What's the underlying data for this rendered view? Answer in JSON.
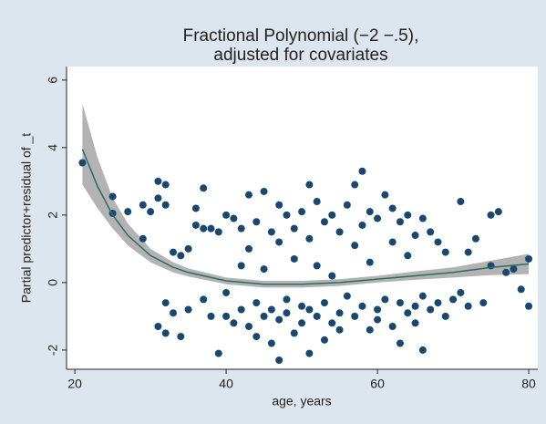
{
  "chart_data": {
    "type": "scatter-fit",
    "title": [
      "Fractional Polynomial (−2 −.5),",
      "adjusted for covariates"
    ],
    "x_label": "age, years",
    "y_label": "Partial predictor+residual of _t",
    "xlim": [
      18.9,
      81.2
    ],
    "ylim": [
      -2.57,
      6.4
    ],
    "xticks": [
      20,
      40,
      60,
      80
    ],
    "yticks": [
      -2,
      0,
      2,
      4,
      6
    ],
    "points": {
      "color": "#1a476f",
      "x": [
        21,
        25,
        25,
        27,
        29,
        29,
        30,
        31,
        31,
        32,
        32,
        31,
        32,
        32,
        33,
        33,
        34,
        34,
        35,
        35,
        36,
        36,
        37,
        37,
        37,
        38,
        38,
        39,
        39,
        40,
        40,
        40,
        41,
        41,
        42,
        42,
        42,
        43,
        43,
        43,
        44,
        44,
        44,
        45,
        45,
        45,
        46,
        46,
        46,
        47,
        47,
        47,
        47,
        48,
        48,
        48,
        49,
        49,
        49,
        50,
        50,
        50,
        51,
        51,
        51,
        51,
        52,
        52,
        52,
        53,
        53,
        53,
        54,
        54,
        54,
        55,
        55,
        55,
        56,
        56,
        57,
        57,
        57,
        58,
        58,
        58,
        59,
        59,
        59,
        60,
        60,
        60,
        61,
        61,
        62,
        62,
        62,
        63,
        63,
        63,
        64,
        64,
        64,
        65,
        65,
        65,
        66,
        66,
        66,
        67,
        67,
        68,
        68,
        69,
        69,
        70,
        71,
        71,
        72,
        72,
        73,
        74,
        75,
        75,
        76,
        77,
        78,
        79,
        80,
        80
      ],
      "y": [
        3.55,
        2.55,
        2.05,
        2.1,
        1.3,
        2.3,
        2.1,
        3.0,
        2.5,
        2.9,
        2.3,
        -1.3,
        -1.5,
        -0.6,
        0.9,
        -0.9,
        -1.6,
        0.8,
        1.0,
        -0.8,
        1.7,
        2.2,
        1.6,
        -0.5,
        2.8,
        1.6,
        -1.0,
        -2.1,
        1.5,
        2.0,
        -0.3,
        -1.0,
        1.9,
        -1.2,
        0.5,
        -0.8,
        1.6,
        -1.3,
        2.6,
        1.0,
        -0.6,
        1.8,
        -1.6,
        2.7,
        -1.0,
        0.4,
        -0.8,
        1.5,
        -1.8,
        2.3,
        -2.3,
        -1.1,
        1.2,
        -0.5,
        -0.9,
        2.0,
        -1.5,
        0.7,
        1.6,
        -0.7,
        -1.2,
        2.1,
        2.9,
        -2.1,
        -0.8,
        1.3,
        2.4,
        -1.0,
        0.5,
        -1.7,
        -0.6,
        1.8,
        2.0,
        -1.2,
        0.2,
        -0.9,
        1.5,
        -1.4,
        2.3,
        -0.4,
        2.9,
        -1.0,
        1.1,
        3.3,
        -0.7,
        1.7,
        -1.4,
        2.1,
        0.6,
        -0.8,
        1.9,
        -1.1,
        2.6,
        -0.5,
        2.2,
        -1.3,
        1.2,
        -0.6,
        1.8,
        -1.8,
        2.0,
        -0.9,
        0.8,
        -0.7,
        1.4,
        -1.2,
        1.9,
        -2.0,
        -0.4,
        1.5,
        -0.8,
        1.2,
        -0.6,
        0.9,
        -1.0,
        -0.5,
        2.4,
        -0.3,
        -0.7,
        0.9,
        1.3,
        -0.6,
        2.0,
        0.5,
        2.1,
        0.3,
        0.4,
        -0.2,
        0.7,
        -0.7
      ]
    },
    "fit": {
      "color": "#2e6b60",
      "band_color": "#9a9a9a",
      "x": [
        21,
        23,
        25,
        27,
        30,
        33,
        35,
        40,
        45,
        50,
        55,
        60,
        65,
        70,
        75,
        80
      ],
      "values": [
        3.95,
        2.85,
        2.0,
        1.4,
        0.8,
        0.45,
        0.3,
        0.05,
        -0.05,
        -0.05,
        0.0,
        0.1,
        0.2,
        0.3,
        0.45,
        0.55
      ],
      "upper": [
        5.3,
        3.7,
        2.5,
        1.75,
        1.0,
        0.6,
        0.42,
        0.15,
        0.05,
        0.05,
        0.1,
        0.2,
        0.33,
        0.45,
        0.65,
        0.85
      ],
      "lower": [
        2.9,
        2.2,
        1.6,
        1.1,
        0.6,
        0.3,
        0.18,
        -0.05,
        -0.15,
        -0.15,
        -0.1,
        0.0,
        0.08,
        0.15,
        0.22,
        0.25
      ]
    }
  }
}
